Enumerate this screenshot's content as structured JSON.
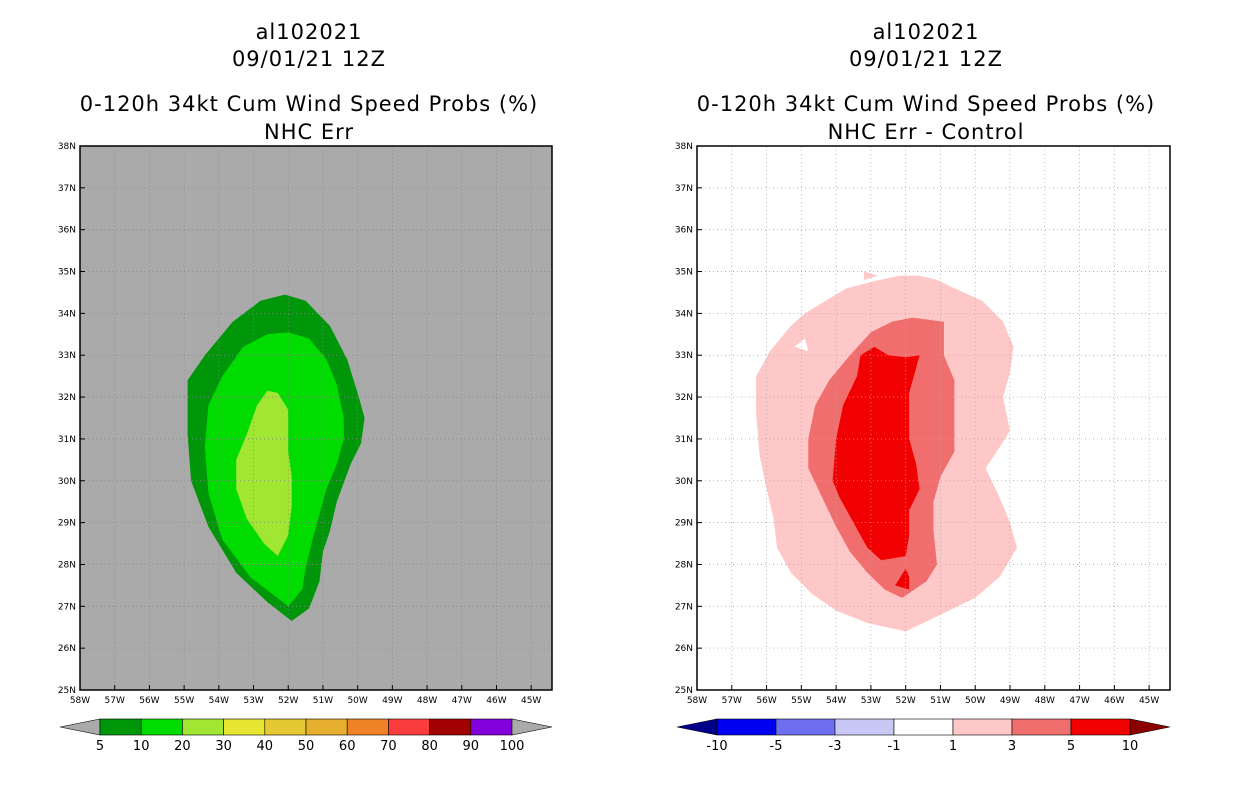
{
  "chart_data": [
    {
      "type": "contour-map",
      "title_lines": [
        "al102021",
        "09/01/21 12Z",
        "0-120h 34kt Cum Wind Speed Probs (%)",
        "NHC Err"
      ],
      "xlabels": [
        "58W",
        "57W",
        "56W",
        "55W",
        "54W",
        "53W",
        "52W",
        "51W",
        "50W",
        "49W",
        "48W",
        "47W",
        "46W",
        "45W"
      ],
      "ylabels": [
        "25N",
        "26N",
        "27N",
        "28N",
        "29N",
        "30N",
        "31N",
        "32N",
        "33N",
        "34N",
        "35N",
        "36N",
        "37N",
        "38N"
      ],
      "xlim": [
        -58,
        -44.4
      ],
      "ylim": [
        25,
        38
      ],
      "background_color": "#aaaaaa",
      "grid": false,
      "colorbar": {
        "levels": [
          "5",
          "10",
          "20",
          "30",
          "40",
          "50",
          "60",
          "70",
          "80",
          "90",
          "100"
        ],
        "colors": [
          "#aaaaaa",
          "#00960a",
          "#00dc00",
          "#a0e632",
          "#e6e632",
          "#e6c832",
          "#e6af2d",
          "#f08228",
          "#fa3c3c",
          "#a00000",
          "#8200dc",
          "#aaaaaa"
        ]
      },
      "contours": [
        {
          "level": "5-10",
          "color": "#00960a",
          "polygon": [
            [
              -51.9,
              26.65
            ],
            [
              -51.4,
              26.95
            ],
            [
              -51.1,
              27.6
            ],
            [
              -51.0,
              28.3
            ],
            [
              -50.8,
              28.8
            ],
            [
              -50.6,
              29.5
            ],
            [
              -50.2,
              30.4
            ],
            [
              -49.9,
              30.9
            ],
            [
              -49.8,
              31.5
            ],
            [
              -50.0,
              32.1
            ],
            [
              -50.3,
              32.9
            ],
            [
              -50.8,
              33.7
            ],
            [
              -51.5,
              34.3
            ],
            [
              -52.1,
              34.45
            ],
            [
              -52.8,
              34.3
            ],
            [
              -53.6,
              33.8
            ],
            [
              -54.4,
              33.0
            ],
            [
              -54.9,
              32.4
            ],
            [
              -54.9,
              31.9
            ],
            [
              -54.9,
              31.1
            ],
            [
              -54.8,
              30.0
            ],
            [
              -54.3,
              28.9
            ],
            [
              -53.5,
              27.8
            ],
            [
              -52.6,
              27.1
            ]
          ]
        },
        {
          "level": "10-20",
          "color": "#00dc00",
          "polygon": [
            [
              -52.0,
              27.0
            ],
            [
              -51.6,
              27.4
            ],
            [
              -51.5,
              27.9
            ],
            [
              -51.3,
              28.6
            ],
            [
              -51.1,
              29.2
            ],
            [
              -50.9,
              29.8
            ],
            [
              -50.6,
              30.4
            ],
            [
              -50.4,
              31.0
            ],
            [
              -50.4,
              31.5
            ],
            [
              -50.6,
              32.3
            ],
            [
              -50.9,
              32.9
            ],
            [
              -51.4,
              33.4
            ],
            [
              -52.0,
              33.55
            ],
            [
              -52.6,
              33.5
            ],
            [
              -53.3,
              33.2
            ],
            [
              -53.9,
              32.5
            ],
            [
              -54.3,
              31.8
            ],
            [
              -54.4,
              30.8
            ],
            [
              -54.3,
              29.7
            ],
            [
              -53.9,
              28.6
            ],
            [
              -53.1,
              27.7
            ]
          ]
        },
        {
          "level": "20-30",
          "color": "#a0e632",
          "polygon": [
            [
              -52.3,
              28.2
            ],
            [
              -52.0,
              28.7
            ],
            [
              -51.9,
              29.4
            ],
            [
              -51.9,
              30.1
            ],
            [
              -52.0,
              30.7
            ],
            [
              -52.0,
              31.3
            ],
            [
              -52.0,
              31.7
            ],
            [
              -52.3,
              32.1
            ],
            [
              -52.6,
              32.15
            ],
            [
              -52.9,
              31.8
            ],
            [
              -53.2,
              31.1
            ],
            [
              -53.5,
              30.5
            ],
            [
              -53.5,
              29.8
            ],
            [
              -53.2,
              29.1
            ],
            [
              -52.7,
              28.5
            ]
          ]
        }
      ]
    },
    {
      "type": "contour-map",
      "title_lines": [
        "al102021",
        "09/01/21 12Z",
        "0-120h 34kt Cum Wind Speed Probs (%)",
        "NHC Err - Control"
      ],
      "xlabels": [
        "58W",
        "57W",
        "56W",
        "55W",
        "54W",
        "53W",
        "52W",
        "51W",
        "50W",
        "49W",
        "48W",
        "47W",
        "46W",
        "45W"
      ],
      "ylabels": [
        "25N",
        "26N",
        "27N",
        "28N",
        "29N",
        "30N",
        "31N",
        "32N",
        "33N",
        "34N",
        "35N",
        "36N",
        "37N",
        "38N"
      ],
      "xlim": [
        -58,
        -44.4
      ],
      "ylim": [
        25,
        38
      ],
      "background_color": "#ffffff",
      "grid": true,
      "colorbar": {
        "levels": [
          "-10",
          "-5",
          "-3",
          "-1",
          "1",
          "3",
          "5",
          "10"
        ],
        "colors": [
          "#00008c",
          "#0000f0",
          "#6e6ef0",
          "#c8c8f5",
          "#ffffff",
          "#ffc8c8",
          "#f06e6e",
          "#f00000",
          "#8c0000"
        ]
      },
      "contours": [
        {
          "level": "1-3",
          "color": "#ffc8c8",
          "polygon": [
            [
              -52.0,
              26.4
            ],
            [
              -51.0,
              26.8
            ],
            [
              -50.0,
              27.2
            ],
            [
              -49.3,
              27.7
            ],
            [
              -48.8,
              28.4
            ],
            [
              -49.0,
              29.0
            ],
            [
              -49.3,
              29.6
            ],
            [
              -49.7,
              30.3
            ],
            [
              -49.3,
              30.8
            ],
            [
              -49.0,
              31.2
            ],
            [
              -49.2,
              32.0
            ],
            [
              -49.0,
              32.6
            ],
            [
              -48.9,
              33.2
            ],
            [
              -49.2,
              33.8
            ],
            [
              -49.8,
              34.3
            ],
            [
              -50.6,
              34.6
            ],
            [
              -51.1,
              34.8
            ],
            [
              -51.6,
              34.9
            ],
            [
              -52.2,
              34.9
            ],
            [
              -53.0,
              34.75
            ],
            [
              -53.7,
              34.6
            ],
            [
              -54.3,
              34.3
            ],
            [
              -54.9,
              34.0
            ],
            [
              -55.3,
              33.7
            ],
            [
              -55.9,
              33.1
            ],
            [
              -56.3,
              32.5
            ],
            [
              -56.3,
              31.6
            ],
            [
              -56.2,
              30.6
            ],
            [
              -56.0,
              29.8
            ],
            [
              -55.8,
              29.1
            ],
            [
              -55.7,
              28.4
            ],
            [
              -55.3,
              27.8
            ],
            [
              -54.7,
              27.3
            ],
            [
              -54.0,
              26.9
            ],
            [
              -53.1,
              26.6
            ]
          ]
        },
        {
          "level": "white-hole-1",
          "color": "#ffffff",
          "polygon": [
            [
              -55.2,
              33.2
            ],
            [
              -54.9,
              33.4
            ],
            [
              -54.8,
              33.1
            ]
          ]
        },
        {
          "level": "white-hole-2",
          "color": "#ffffff",
          "polygon": [
            [
              -48.8,
              32.8
            ],
            [
              -48.5,
              32.6
            ],
            [
              -48.3,
              32.0
            ],
            [
              -48.7,
              32.3
            ]
          ]
        },
        {
          "level": "white-hole-3",
          "color": "#ffffff",
          "polygon": [
            [
              -49.0,
              30.4
            ],
            [
              -48.3,
              30.6
            ],
            [
              -47.9,
              30.4
            ],
            [
              -48.2,
              30.1
            ]
          ]
        },
        {
          "level": "blob-1",
          "color": "#ffc8c8",
          "polygon": [
            [
              -53.2,
              35.0
            ],
            [
              -52.8,
              34.9
            ],
            [
              -53.2,
              34.8
            ]
          ]
        },
        {
          "level": "3-5",
          "color": "#f06e6e",
          "polygon": [
            [
              -52.1,
              27.2
            ],
            [
              -51.4,
              27.6
            ],
            [
              -51.1,
              28.0
            ],
            [
              -51.2,
              28.8
            ],
            [
              -51.2,
              29.5
            ],
            [
              -51.0,
              30.1
            ],
            [
              -50.6,
              30.7
            ],
            [
              -50.6,
              31.5
            ],
            [
              -50.6,
              32.4
            ],
            [
              -50.9,
              33.0
            ],
            [
              -50.9,
              33.6
            ],
            [
              -50.9,
              33.8
            ],
            [
              -51.8,
              33.9
            ],
            [
              -52.4,
              33.8
            ],
            [
              -53.0,
              33.55
            ],
            [
              -53.6,
              33.0
            ],
            [
              -54.2,
              32.4
            ],
            [
              -54.6,
              31.8
            ],
            [
              -54.8,
              31.0
            ],
            [
              -54.8,
              30.3
            ],
            [
              -54.4,
              29.6
            ],
            [
              -54.0,
              28.9
            ],
            [
              -53.6,
              28.3
            ],
            [
              -53.1,
              27.8
            ],
            [
              -52.6,
              27.4
            ]
          ]
        },
        {
          "level": "5-10-main",
          "color": "#f00000",
          "polygon": [
            [
              -52.0,
              28.2
            ],
            [
              -51.9,
              28.7
            ],
            [
              -51.9,
              29.3
            ],
            [
              -51.6,
              29.8
            ],
            [
              -51.7,
              30.4
            ],
            [
              -51.9,
              31.0
            ],
            [
              -51.9,
              31.5
            ],
            [
              -51.9,
              32.1
            ],
            [
              -51.7,
              32.7
            ],
            [
              -51.6,
              33.0
            ],
            [
              -52.0,
              32.95
            ],
            [
              -52.5,
              33.0
            ],
            [
              -52.9,
              33.2
            ],
            [
              -53.3,
              33.0
            ],
            [
              -53.4,
              32.5
            ],
            [
              -53.8,
              31.8
            ],
            [
              -54.0,
              31.0
            ],
            [
              -54.1,
              30.0
            ],
            [
              -53.9,
              29.6
            ],
            [
              -53.5,
              29.0
            ],
            [
              -53.1,
              28.4
            ],
            [
              -52.7,
              28.1
            ]
          ]
        },
        {
          "level": "5-10-small",
          "color": "#f00000",
          "polygon": [
            [
              -51.9,
              27.4
            ],
            [
              -51.9,
              27.7
            ],
            [
              -52.0,
              27.9
            ],
            [
              -52.3,
              27.5
            ]
          ]
        }
      ]
    }
  ]
}
